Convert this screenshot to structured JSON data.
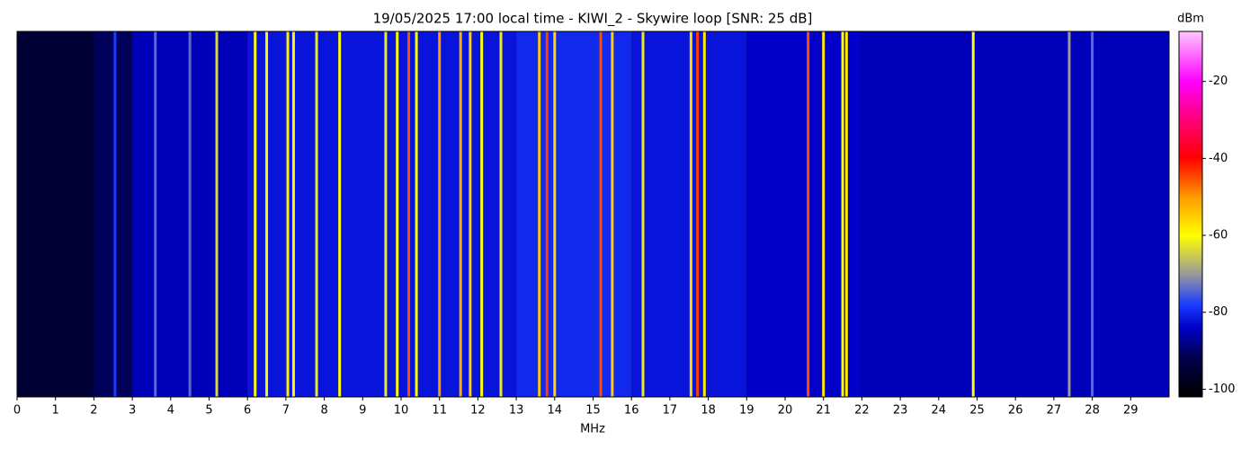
{
  "chart_data": {
    "type": "spectrogram",
    "title": "19/05/2025 17:00 local time - KIWI_2 - Skywire loop [SNR: 25 dB]",
    "x_label": "MHz",
    "colorbar_label": "dBm",
    "xlim": [
      0,
      30
    ],
    "xticks": [
      0,
      1,
      2,
      3,
      4,
      5,
      6,
      7,
      8,
      9,
      10,
      11,
      12,
      13,
      14,
      15,
      16,
      17,
      18,
      19,
      20,
      21,
      22,
      23,
      24,
      25,
      26,
      27,
      28,
      29
    ],
    "clim": [
      -102,
      -7
    ],
    "cticks": [
      -20,
      -40,
      -60,
      -80,
      -100
    ],
    "colormap": [
      {
        "value": -102,
        "color": "#000000"
      },
      {
        "value": -92,
        "color": "#00004a"
      },
      {
        "value": -84,
        "color": "#0000c8"
      },
      {
        "value": -78,
        "color": "#1a3cff"
      },
      {
        "value": -70,
        "color": "#9a9a9a"
      },
      {
        "value": -60,
        "color": "#ffff00"
      },
      {
        "value": -50,
        "color": "#ff9a00"
      },
      {
        "value": -40,
        "color": "#ff0000"
      },
      {
        "value": -28,
        "color": "#ff0090"
      },
      {
        "value": -20,
        "color": "#ff00ff"
      },
      {
        "value": -7,
        "color": "#ffc8ff"
      }
    ],
    "bands": [
      {
        "from": 0,
        "to": 2,
        "level": -95
      },
      {
        "from": 2,
        "to": 3,
        "level": -91
      },
      {
        "from": 3,
        "to": 6,
        "level": -85
      },
      {
        "from": 6,
        "to": 13,
        "level": -82
      },
      {
        "from": 13,
        "to": 16,
        "level": -80
      },
      {
        "from": 16,
        "to": 19,
        "level": -82
      },
      {
        "from": 19,
        "to": 22,
        "level": -84
      },
      {
        "from": 22,
        "to": 30,
        "level": -85
      }
    ],
    "carriers": [
      {
        "freq": 2.55,
        "level": -78
      },
      {
        "freq": 3.6,
        "level": -74
      },
      {
        "freq": 4.5,
        "level": -74
      },
      {
        "freq": 5.2,
        "level": -64
      },
      {
        "freq": 6.2,
        "level": -60
      },
      {
        "freq": 6.5,
        "level": -61
      },
      {
        "freq": 7.05,
        "level": -58
      },
      {
        "freq": 7.2,
        "level": -59
      },
      {
        "freq": 7.8,
        "level": -62
      },
      {
        "freq": 8.4,
        "level": -60
      },
      {
        "freq": 9.6,
        "level": -62
      },
      {
        "freq": 9.9,
        "level": -60
      },
      {
        "freq": 10.2,
        "level": -45
      },
      {
        "freq": 10.4,
        "level": -60
      },
      {
        "freq": 11.0,
        "level": -50
      },
      {
        "freq": 11.55,
        "level": -52
      },
      {
        "freq": 11.8,
        "level": -55
      },
      {
        "freq": 12.1,
        "level": -60
      },
      {
        "freq": 12.6,
        "level": -62
      },
      {
        "freq": 13.6,
        "level": -55
      },
      {
        "freq": 13.8,
        "level": -44
      },
      {
        "freq": 14.0,
        "level": -56
      },
      {
        "freq": 15.2,
        "level": -45
      },
      {
        "freq": 15.5,
        "level": -55
      },
      {
        "freq": 16.3,
        "level": -62
      },
      {
        "freq": 17.55,
        "level": -56
      },
      {
        "freq": 17.72,
        "level": -44
      },
      {
        "freq": 17.9,
        "level": -58
      },
      {
        "freq": 20.6,
        "level": -45
      },
      {
        "freq": 21.0,
        "level": -58
      },
      {
        "freq": 21.5,
        "level": -60
      },
      {
        "freq": 21.6,
        "level": -58
      },
      {
        "freq": 24.9,
        "level": -60
      },
      {
        "freq": 27.4,
        "level": -70
      },
      {
        "freq": 28.0,
        "level": -74
      }
    ]
  }
}
